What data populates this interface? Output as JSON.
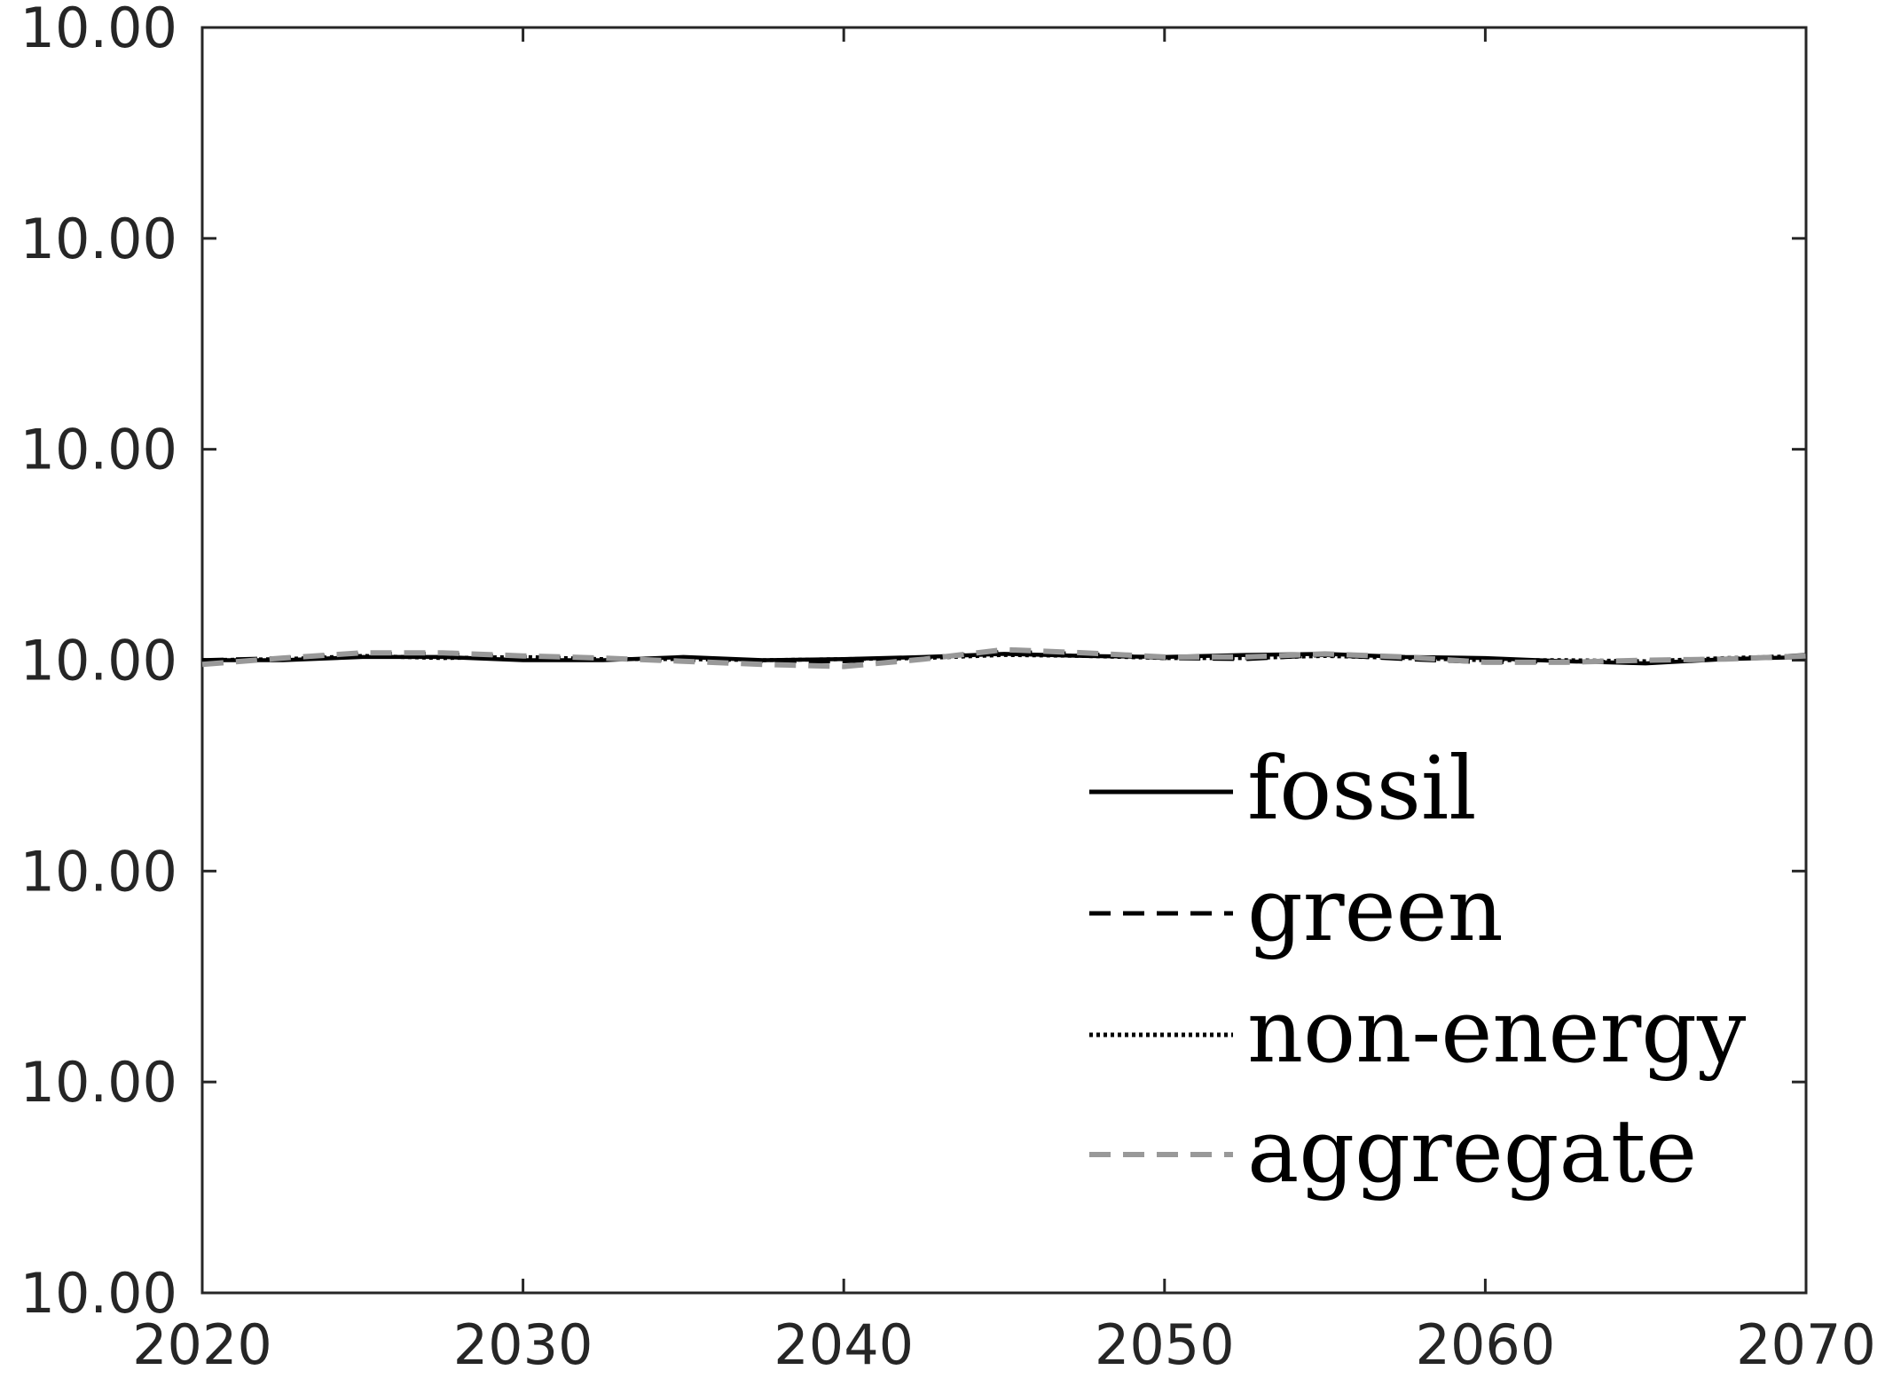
{
  "chart_data": {
    "type": "line",
    "title": "",
    "xlabel": "",
    "ylabel": "",
    "xlim": [
      2020,
      2070
    ],
    "xticks": [
      "2020",
      "2030",
      "2040",
      "2050",
      "2060",
      "2070"
    ],
    "ylim": [
      9.94,
      10.06
    ],
    "yticks": [
      "10.00",
      "10.00",
      "10.00",
      "10.00",
      "10.00",
      "10.00",
      "10.00"
    ],
    "grid": false,
    "legend_position": "lower-right",
    "x": [
      2020,
      2022.5,
      2025,
      2027.5,
      2030,
      2032.5,
      2035,
      2037.5,
      2040,
      2042.5,
      2045,
      2047.5,
      2050,
      2052.5,
      2055,
      2057.5,
      2060,
      2062.5,
      2065,
      2067.5,
      2070
    ],
    "series": [
      {
        "name": "fossil",
        "color": "#000000",
        "dash": "solid",
        "values": [
          10.0,
          10.0,
          10.0003,
          10.0003,
          10.0,
          10.0,
          10.0003,
          10.0,
          10.0001,
          10.0003,
          10.0006,
          10.0004,
          10.0003,
          10.0005,
          10.0006,
          10.0003,
          10.0002,
          9.9999,
          9.9997,
          10.0001,
          10.0003
        ]
      },
      {
        "name": "green",
        "color": "#000000",
        "dash": "dashed",
        "values": [
          10.0,
          10.0002,
          10.0006,
          10.0006,
          10.0003,
          10.0001,
          10.0,
          9.9999,
          9.9999,
          10.0002,
          10.0008,
          10.0006,
          10.0002,
          10.0001,
          10.0005,
          10.0001,
          9.9998,
          9.9999,
          9.9998,
          10.0001,
          10.0005
        ]
      },
      {
        "name": "non-energy",
        "color": "#000000",
        "dash": "dotted",
        "values": [
          10.0,
          10.0001,
          10.0004,
          10.0002,
          10.0003,
          10.0001,
          10.0001,
          10.0,
          10.0001,
          10.0002,
          10.0005,
          10.0004,
          10.0002,
          10.0002,
          10.0004,
          10.0002,
          10.0,
          10.0,
          9.9999,
          10.0002,
          10.0004
        ]
      },
      {
        "name": "aggregate",
        "color": "#999999",
        "dash": "dashed",
        "values": [
          9.9996,
          10.0002,
          10.0007,
          10.0007,
          10.0004,
          10.0002,
          9.9999,
          9.9996,
          9.9994,
          10.0001,
          10.001,
          10.0007,
          10.0003,
          10.0003,
          10.0006,
          10.0003,
          9.9998,
          9.9998,
          10.0,
          10.0001,
          10.0004
        ]
      }
    ]
  }
}
